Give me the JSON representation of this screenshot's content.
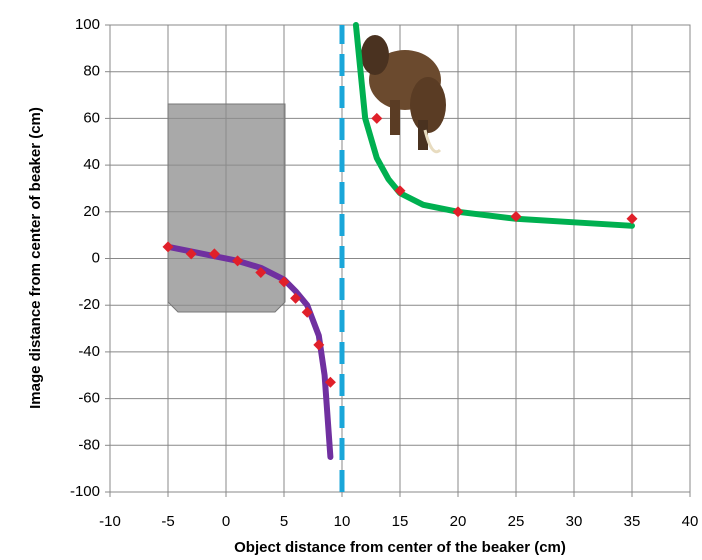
{
  "chart_data": {
    "type": "scatter",
    "x_label": "Object distance from center of the beaker (cm)",
    "y_label": "Image distance from center of beaker (cm)",
    "xlim": [
      -10,
      40
    ],
    "xticks": [
      -10,
      -5,
      0,
      5,
      10,
      15,
      20,
      25,
      30,
      35,
      40
    ],
    "ylim": [
      -100,
      100
    ],
    "yticks": [
      -100,
      -80,
      -60,
      -40,
      -20,
      0,
      20,
      40,
      60,
      80,
      100
    ],
    "grid": true,
    "series": [
      {
        "style": "line",
        "color": "#7030a0",
        "x": [
          -5,
          -3,
          -1,
          1,
          3,
          5,
          6,
          7,
          8,
          8.5,
          9
        ],
        "values": [
          5,
          3,
          1,
          -1,
          -4,
          -9,
          -14,
          -20,
          -33,
          -50,
          -85
        ]
      },
      {
        "style": "line",
        "color": "#00b050",
        "x": [
          11.2,
          12,
          13,
          14,
          15,
          17,
          20,
          25,
          30,
          35
        ],
        "values": [
          100,
          60,
          43,
          34,
          28,
          23,
          20,
          17,
          15.5,
          14
        ]
      },
      {
        "style": "dashed",
        "color": "#1aa6d9",
        "x": [
          10,
          10
        ],
        "values": [
          -100,
          100
        ]
      },
      {
        "style": "markers",
        "color": "#e0202a",
        "x": [
          -5,
          -3,
          -1,
          1,
          3,
          5,
          6,
          7,
          8,
          9,
          13,
          15,
          20,
          25,
          35
        ],
        "values": [
          5,
          2,
          2,
          -1,
          -6,
          -10,
          -17,
          -23,
          -37,
          -53,
          60,
          29,
          20,
          18,
          17
        ]
      }
    ]
  }
}
